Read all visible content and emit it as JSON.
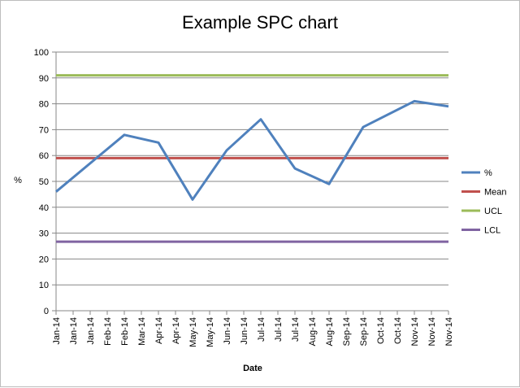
{
  "chart_data": {
    "type": "line",
    "title": "Example SPC chart",
    "xlabel": "Date",
    "ylabel": "%",
    "ylim": [
      0,
      100
    ],
    "yticks": [
      0,
      10,
      20,
      30,
      40,
      50,
      60,
      70,
      80,
      90,
      100
    ],
    "grid": "horizontal",
    "legend_position": "right",
    "categories": [
      "Jan-14",
      "Jan-14",
      "Jan-14",
      "Feb-14",
      "Feb-14",
      "Mar-14",
      "Apr-14",
      "Apr-14",
      "May-14",
      "May-14",
      "Jun-14",
      "Jun-14",
      "Jul-14",
      "Jul-14",
      "Jul-14",
      "Aug-14",
      "Aug-14",
      "Sep-14",
      "Sep-14",
      "Oct-14",
      "Oct-14",
      "Nov-14",
      "Nov-14",
      "Nov-14"
    ],
    "series": [
      {
        "name": "%",
        "color": "#4f81bd",
        "values": [
          46,
          null,
          null,
          null,
          68,
          null,
          65,
          null,
          43,
          null,
          62,
          null,
          74,
          null,
          55,
          null,
          49,
          null,
          71,
          null,
          null,
          81,
          null,
          79
        ]
      },
      {
        "name": "Mean",
        "color": "#c0504d",
        "values": [
          59,
          59,
          59,
          59,
          59,
          59,
          59,
          59,
          59,
          59,
          59,
          59,
          59,
          59,
          59,
          59,
          59,
          59,
          59,
          59,
          59,
          59,
          59,
          59
        ]
      },
      {
        "name": "UCL",
        "color": "#9bbb59",
        "values": [
          91,
          91,
          91,
          91,
          91,
          91,
          91,
          91,
          91,
          91,
          91,
          91,
          91,
          91,
          91,
          91,
          91,
          91,
          91,
          91,
          91,
          91,
          91,
          91
        ]
      },
      {
        "name": "LCL",
        "color": "#8064a2",
        "values": [
          26.7,
          26.7,
          26.7,
          26.7,
          26.7,
          26.7,
          26.7,
          26.7,
          26.7,
          26.7,
          26.7,
          26.7,
          26.7,
          26.7,
          26.7,
          26.7,
          26.7,
          26.7,
          26.7,
          26.7,
          26.7,
          26.7,
          26.7,
          26.7
        ]
      }
    ]
  }
}
